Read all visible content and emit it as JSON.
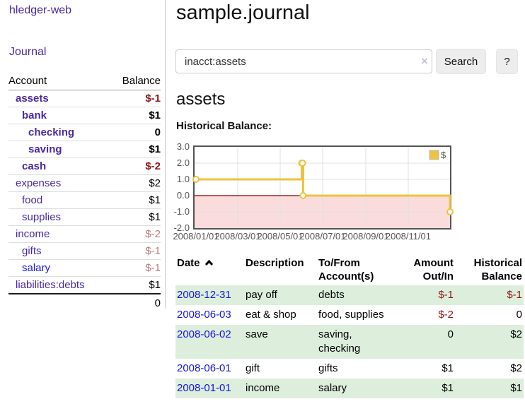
{
  "app": {
    "title": "hledger-web",
    "nav_journal": "Journal"
  },
  "sidebar": {
    "header": {
      "account": "Account",
      "balance": "Balance"
    },
    "accounts": [
      {
        "name": "assets",
        "depth": 0,
        "bold": true,
        "balance": "$-1",
        "balance_style": "neg-dark"
      },
      {
        "name": "bank",
        "depth": 1,
        "bold": true,
        "balance": "$1",
        "balance_style": "normal"
      },
      {
        "name": "checking",
        "depth": 2,
        "bold": true,
        "balance": "0",
        "balance_style": "normal"
      },
      {
        "name": "saving",
        "depth": 2,
        "bold": true,
        "balance": "$1",
        "balance_style": "normal"
      },
      {
        "name": "cash",
        "depth": 1,
        "bold": true,
        "balance": "$-2",
        "balance_style": "neg-dark"
      },
      {
        "name": "expenses",
        "depth": 0,
        "bold": false,
        "balance": "$2",
        "balance_style": "normal"
      },
      {
        "name": "food",
        "depth": 1,
        "bold": false,
        "balance": "$1",
        "balance_style": "normal"
      },
      {
        "name": "supplies",
        "depth": 1,
        "bold": false,
        "balance": "$1",
        "balance_style": "normal"
      },
      {
        "name": "income",
        "depth": 0,
        "bold": false,
        "balance": "$-2",
        "balance_style": "neg-light"
      },
      {
        "name": "gifts",
        "depth": 1,
        "bold": false,
        "balance": "$-1",
        "balance_style": "neg-light"
      },
      {
        "name": "salary",
        "depth": 1,
        "bold": false,
        "balance": "$-1",
        "balance_style": "neg-light",
        "link_style": "blue"
      },
      {
        "name": "liabilities:debts",
        "depth": 0,
        "bold": false,
        "balance": "$1",
        "balance_style": "normal"
      }
    ],
    "total": "0"
  },
  "header": {
    "title": "sample.journal"
  },
  "search": {
    "value": "inacct:assets",
    "clear_icon": "×",
    "button": "Search",
    "help_button": "?"
  },
  "account_page": {
    "heading": "assets",
    "chart_label": "Historical Balance:"
  },
  "chart_data": {
    "type": "line",
    "style": "steps",
    "title": "Historical Balance:",
    "series": [
      {
        "name": "$",
        "color": "#edc240",
        "points": [
          [
            "2008-01-01",
            1
          ],
          [
            "2008-06-01",
            2
          ],
          [
            "2008-06-02",
            2
          ],
          [
            "2008-06-03",
            0
          ],
          [
            "2008-12-31",
            -1
          ]
        ]
      }
    ],
    "xrange": [
      "2008-01-01",
      "2008-12-31"
    ],
    "ylim": [
      -2,
      3
    ],
    "x_ticks": [
      "2008/01/01",
      "2008/03/01",
      "2008/05/01",
      "2008/07/01",
      "2008/09/01",
      "2008/11/01"
    ],
    "y_ticks": [
      "3.0",
      "2.0",
      "1.0",
      "0.0",
      "-1.0",
      "-2.0"
    ],
    "grid": true,
    "legend": {
      "label": "$",
      "position": "top-right"
    },
    "negative_region_color": "#fbdcdc",
    "zero_line_color": "#8b0000"
  },
  "register": {
    "columns": [
      "Date",
      "Description",
      "To/From Account(s)",
      "Amount Out/In",
      "Historical Balance"
    ],
    "sort": {
      "column": "Date",
      "direction": "ascending"
    },
    "rows": [
      {
        "date": "2008-12-31",
        "description": "pay off",
        "accounts": "debts",
        "amount": "$-1",
        "amount_negative": true,
        "balance": "$-1",
        "balance_negative": true
      },
      {
        "date": "2008-06-03",
        "description": "eat & shop",
        "accounts": "food, supplies",
        "amount": "$-2",
        "amount_negative": true,
        "balance": "0",
        "balance_negative": false
      },
      {
        "date": "2008-06-02",
        "description": "save",
        "accounts": "saving, checking",
        "amount": "0",
        "amount_negative": false,
        "balance": "$2",
        "balance_negative": false
      },
      {
        "date": "2008-06-01",
        "description": "gift",
        "accounts": "gifts",
        "amount": "$1",
        "amount_negative": false,
        "balance": "$2",
        "balance_negative": false
      },
      {
        "date": "2008-01-01",
        "description": "income",
        "accounts": "salary",
        "amount": "$1",
        "amount_negative": false,
        "balance": "$1",
        "balance_negative": false
      }
    ]
  }
}
